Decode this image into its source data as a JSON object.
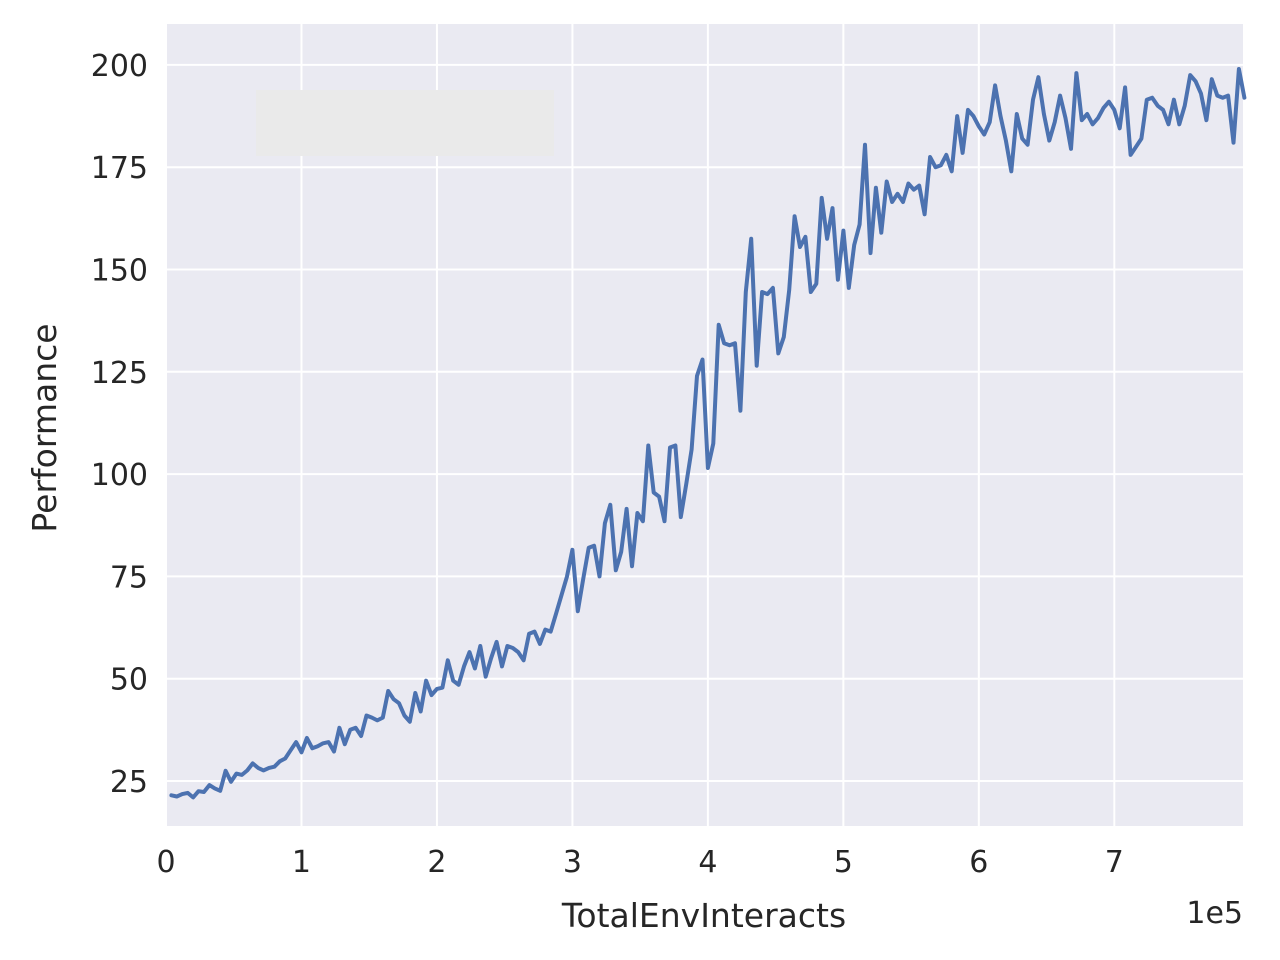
{
  "chart_data": {
    "type": "line",
    "title": "",
    "xlabel": "TotalEnvInteracts",
    "ylabel": "Performance",
    "x_offset_label": "1e5",
    "xlim": [
      0,
      7.95
    ],
    "ylim": [
      14,
      210
    ],
    "x_ticks": [
      0,
      1,
      2,
      3,
      4,
      5,
      6,
      7
    ],
    "x_tick_labels": [
      "0",
      "1",
      "2",
      "3",
      "4",
      "5",
      "6",
      "7"
    ],
    "y_ticks": [
      25,
      50,
      75,
      100,
      125,
      150,
      175,
      200
    ],
    "y_tick_labels": [
      "25",
      "50",
      "75",
      "100",
      "125",
      "150",
      "175",
      "200"
    ],
    "grid": true,
    "legend": "upper-left, blank",
    "colors": {
      "background": "#eaeaf2",
      "grid": "#ffffff",
      "line": "#4c72b0",
      "legend_box": "#eaeaea"
    },
    "series": [
      {
        "x_step": 0.04,
        "x_start": 0.04,
        "values": [
          21.5,
          21.2,
          21.8,
          22.1,
          21.0,
          22.5,
          22.3,
          24.0,
          23.2,
          22.6,
          27.5,
          24.8,
          26.8,
          26.5,
          27.6,
          29.3,
          28.2,
          27.6,
          28.2,
          28.5,
          29.8,
          30.5,
          32.5,
          34.5,
          32.0,
          35.5,
          33.0,
          33.5,
          34.2,
          34.5,
          32.2,
          38.0,
          34.0,
          37.5,
          38.0,
          36.0,
          41.0,
          40.5,
          39.8,
          40.5,
          47.0,
          45.0,
          44.0,
          41.0,
          39.5,
          46.5,
          42.0,
          49.5,
          46.0,
          47.5,
          47.8,
          54.5,
          49.5,
          48.5,
          53.0,
          56.5,
          52.5,
          58.0,
          50.5,
          55.0,
          59.0,
          53.0,
          58.0,
          57.5,
          56.5,
          54.5,
          61.0,
          61.5,
          58.5,
          62.0,
          61.5,
          66.0,
          70.5,
          75.0,
          81.5,
          66.5,
          74.5,
          82.0,
          82.5,
          75.0,
          88.0,
          92.5,
          76.5,
          81.0,
          91.5,
          77.5,
          90.5,
          88.5,
          107.0,
          95.5,
          94.5,
          88.5,
          106.5,
          107.0,
          89.5,
          97.5,
          106.0,
          124.0,
          128.0,
          101.5,
          107.5,
          136.5,
          132.0,
          131.5,
          132.0,
          115.5,
          144.5,
          157.5,
          126.5,
          144.5,
          144.0,
          145.5,
          129.5,
          133.5,
          145.0,
          163.0,
          155.5,
          158.0,
          144.5,
          146.5,
          167.5,
          157.5,
          165.0,
          147.5,
          159.5,
          145.5,
          156.0,
          161.0,
          180.5,
          154.0,
          170.0,
          159.0,
          171.5,
          166.5,
          168.5,
          166.5,
          171.0,
          169.5,
          170.5,
          163.5,
          177.5,
          175.0,
          175.5,
          178.0,
          174.0,
          187.5,
          178.5,
          189.0,
          187.5,
          185.0,
          183.0,
          186.0,
          195.0,
          187.5,
          181.5,
          174.0,
          188.0,
          182.0,
          180.5,
          191.5,
          197.0,
          188.0,
          181.5,
          186.0,
          192.5,
          187.0,
          179.5,
          198.0,
          186.5,
          188.0,
          185.5,
          187.0,
          189.5,
          191.0,
          189.0,
          184.5,
          194.5,
          178.0,
          180.0,
          182.0,
          191.5,
          192.0,
          190.0,
          189.0,
          185.5,
          191.5,
          185.5,
          190.0,
          197.5,
          196.0,
          193.0,
          186.5,
          196.5,
          192.5,
          192.0,
          192.5,
          181.0,
          199.0,
          192.0
        ]
      }
    ]
  }
}
